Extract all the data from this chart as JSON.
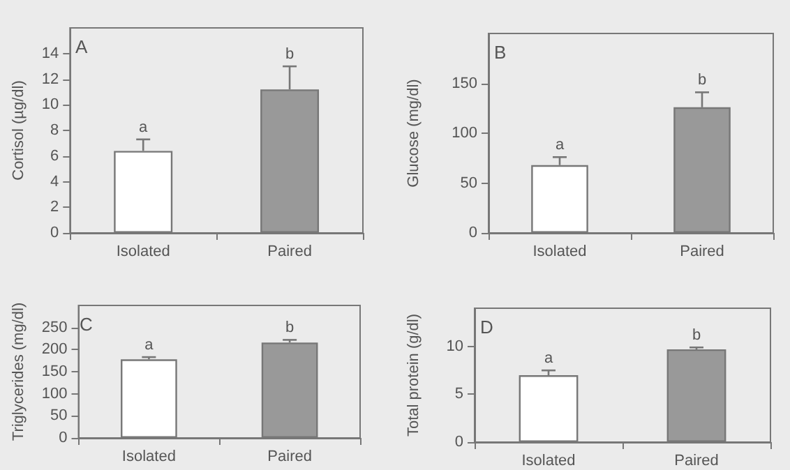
{
  "chart_data": [
    {
      "type": "bar",
      "title": "A",
      "ylabel": "Cortisol (µg/dl)",
      "categories": [
        "Isolated",
        "Paired"
      ],
      "values": [
        6.4,
        11.2
      ],
      "colors": [
        "#ffffff",
        "#999999"
      ],
      "errors": [
        [
          6.4,
          7.3
        ],
        [
          11.2,
          13.0
        ]
      ],
      "ylim": [
        0,
        16
      ],
      "yticks": [
        0,
        2,
        4,
        6,
        8,
        10,
        12,
        14
      ],
      "annotations": [
        {
          "text": "a",
          "x": "Isolated",
          "y": 7.3
        },
        {
          "text": "b",
          "x": "Paired",
          "y": 13.0
        }
      ]
    },
    {
      "type": "bar",
      "title": "B",
      "ylabel": "Glucose (mg/dl)",
      "categories": [
        "Isolated",
        "Paired"
      ],
      "values": [
        68,
        126
      ],
      "colors": [
        "#ffffff",
        "#999999"
      ],
      "errors": [
        [
          68,
          76
        ],
        [
          126,
          141
        ]
      ],
      "ylim": [
        0,
        200
      ],
      "yticks": [
        0,
        50,
        100,
        150
      ],
      "annotations": [
        {
          "text": "a",
          "x": "Isolated",
          "y": 76
        },
        {
          "text": "b",
          "x": "Paired",
          "y": 141
        }
      ]
    },
    {
      "type": "bar",
      "title": "C",
      "ylabel": "Triglycerides (mg/dl)",
      "categories": [
        "Isolated",
        "Paired"
      ],
      "values": [
        178,
        216
      ],
      "colors": [
        "#ffffff",
        "#999999"
      ],
      "errors": [
        [
          178,
          183
        ],
        [
          216,
          222
        ]
      ],
      "ylim": [
        0,
        300
      ],
      "yticks": [
        0,
        50,
        100,
        150,
        200,
        250
      ],
      "annotations": [
        {
          "text": "a",
          "x": "Isolated",
          "y": 183
        },
        {
          "text": "b",
          "x": "Paired",
          "y": 222
        }
      ]
    },
    {
      "type": "bar",
      "title": "D",
      "ylabel": "Total protein (g/dl)",
      "categories": [
        "Isolated",
        "Paired"
      ],
      "values": [
        7.0,
        9.7
      ],
      "colors": [
        "#ffffff",
        "#999999"
      ],
      "errors": [
        [
          7.0,
          7.5
        ],
        [
          9.7,
          9.9
        ]
      ],
      "ylim": [
        0,
        14
      ],
      "yticks": [
        0,
        5,
        10
      ],
      "annotations": [
        {
          "text": "a",
          "x": "Isolated",
          "y": 7.5
        },
        {
          "text": "b",
          "x": "Paired",
          "y": 9.9
        }
      ]
    }
  ]
}
